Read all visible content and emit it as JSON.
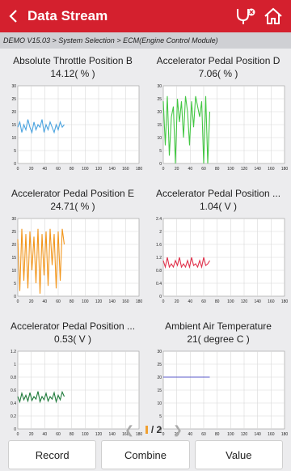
{
  "header": {
    "title": "Data Stream",
    "back_icon": "back-arrow-icon",
    "icons": [
      "diagnose-icon",
      "home-icon"
    ]
  },
  "breadcrumb": "DEMO V15.03 > System Selection > ECM(Engine Control Module)",
  "panels": [
    {
      "title": "Absolute Throttle Position B",
      "value": "14.12( % )"
    },
    {
      "title": "Accelerator Pedal Position D",
      "value": "7.06( % )"
    },
    {
      "title": "Accelerator Pedal Position E",
      "value": "24.71( % )"
    },
    {
      "title": "Accelerator Pedal Position ...",
      "value": "1.04( V )"
    },
    {
      "title": "Accelerator Pedal Position ...",
      "value": "0.53( V )"
    },
    {
      "title": "Ambient Air Temperature",
      "value": "21( degree C )"
    }
  ],
  "chart_data": [
    {
      "type": "line",
      "color": "#4aa3df",
      "ylim": [
        0,
        30
      ],
      "yticks": [
        "0",
        "5",
        "10",
        "15",
        "20",
        "25",
        "30"
      ],
      "xlim": [
        0,
        180
      ],
      "xticks": [
        "0",
        "20",
        "40",
        "60",
        "80",
        "100",
        "120",
        "140",
        "160",
        "180"
      ],
      "series": [
        {
          "x": [
            0,
            3,
            6,
            9,
            12,
            15,
            18,
            21,
            24,
            27,
            30,
            33,
            36,
            39,
            42,
            45,
            48,
            51,
            54,
            57,
            60,
            63,
            66,
            69
          ],
          "values": [
            14,
            16,
            12,
            15,
            13,
            17,
            14,
            12,
            16,
            13,
            15,
            14,
            17,
            12,
            15,
            13,
            16,
            14,
            12,
            15,
            13,
            16,
            14,
            15
          ]
        }
      ]
    },
    {
      "type": "line",
      "color": "#44c744",
      "ylim": [
        0,
        30
      ],
      "yticks": [
        "0",
        "5",
        "10",
        "15",
        "20",
        "25",
        "30"
      ],
      "xlim": [
        0,
        180
      ],
      "xticks": [
        "0",
        "20",
        "40",
        "60",
        "80",
        "100",
        "120",
        "140",
        "160",
        "180"
      ],
      "series": [
        {
          "x": [
            0,
            3,
            6,
            9,
            12,
            15,
            18,
            21,
            24,
            27,
            30,
            33,
            36,
            39,
            42,
            45,
            48,
            51,
            54,
            57,
            60,
            63,
            66,
            69
          ],
          "values": [
            24,
            7,
            26,
            3,
            18,
            22,
            0,
            25,
            16,
            24,
            10,
            26,
            20,
            7,
            24,
            14,
            26,
            22,
            18,
            24,
            0,
            26,
            0,
            20
          ]
        }
      ]
    },
    {
      "type": "line",
      "color": "#f2961c",
      "ylim": [
        0,
        30
      ],
      "yticks": [
        "0",
        "5",
        "10",
        "15",
        "20",
        "25",
        "30"
      ],
      "xlim": [
        0,
        180
      ],
      "xticks": [
        "0",
        "20",
        "40",
        "60",
        "80",
        "100",
        "120",
        "140",
        "160",
        "180"
      ],
      "series": [
        {
          "x": [
            0,
            3,
            6,
            9,
            12,
            15,
            18,
            21,
            24,
            27,
            30,
            33,
            36,
            39,
            42,
            45,
            48,
            51,
            54,
            57,
            60,
            63,
            66,
            69
          ],
          "values": [
            22,
            2,
            26,
            6,
            24,
            3,
            25,
            10,
            23,
            5,
            26,
            1,
            24,
            8,
            25,
            4,
            26,
            12,
            24,
            3,
            25,
            6,
            26,
            20
          ]
        }
      ]
    },
    {
      "type": "line",
      "color": "#e0304a",
      "ylim": [
        0,
        2.4
      ],
      "yticks": [
        "0",
        "0.4",
        "0.8",
        "1.2",
        "1.6",
        "2",
        "2.4"
      ],
      "xlim": [
        0,
        180
      ],
      "xticks": [
        "0",
        "20",
        "40",
        "60",
        "80",
        "100",
        "120",
        "140",
        "160",
        "180"
      ],
      "series": [
        {
          "x": [
            0,
            3,
            6,
            9,
            12,
            15,
            18,
            21,
            24,
            27,
            30,
            33,
            36,
            39,
            42,
            45,
            48,
            51,
            54,
            57,
            60,
            63,
            66,
            69
          ],
          "values": [
            1.1,
            0.9,
            1.2,
            0.9,
            1.0,
            0.9,
            1.1,
            0.95,
            1.2,
            0.9,
            1.0,
            0.9,
            1.1,
            0.9,
            1.2,
            0.95,
            1.0,
            0.9,
            1.1,
            0.9,
            1.2,
            0.95,
            1.0,
            1.1
          ]
        }
      ]
    },
    {
      "type": "line",
      "color": "#1e7a3a",
      "ylim": [
        0,
        1.2
      ],
      "yticks": [
        "0",
        "0.2",
        "0.4",
        "0.6",
        "0.8",
        "1",
        "1.2"
      ],
      "xlim": [
        0,
        180
      ],
      "xticks": [
        "0",
        "20",
        "40",
        "60",
        "80",
        "100",
        "120",
        "140",
        "160",
        "180"
      ],
      "series": [
        {
          "x": [
            0,
            3,
            6,
            9,
            12,
            15,
            18,
            21,
            24,
            27,
            30,
            33,
            36,
            39,
            42,
            45,
            48,
            51,
            54,
            57,
            60,
            63,
            66,
            69
          ],
          "values": [
            0.5,
            0.42,
            0.55,
            0.45,
            0.52,
            0.43,
            0.56,
            0.44,
            0.5,
            0.46,
            0.58,
            0.42,
            0.5,
            0.45,
            0.55,
            0.43,
            0.5,
            0.46,
            0.56,
            0.42,
            0.52,
            0.45,
            0.57,
            0.5
          ]
        }
      ]
    },
    {
      "type": "line",
      "color": "#5a5ac8",
      "ylim": [
        0,
        30
      ],
      "yticks": [
        "0",
        "5",
        "10",
        "15",
        "20",
        "25",
        "30"
      ],
      "xlim": [
        0,
        180
      ],
      "xticks": [
        "0",
        "20",
        "40",
        "60",
        "80",
        "100",
        "120",
        "140",
        "160",
        "180"
      ],
      "series": [
        {
          "x": [
            0,
            69
          ],
          "values": [
            20,
            20
          ]
        }
      ]
    }
  ],
  "pager": {
    "current": "/ 2"
  },
  "buttons": {
    "record": "Record",
    "combine": "Combine",
    "value": "Value"
  }
}
